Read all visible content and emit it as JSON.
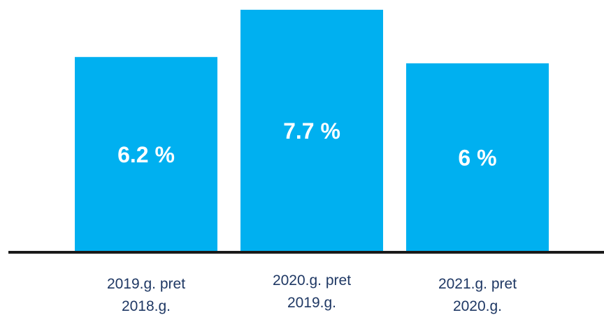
{
  "chart_data": {
    "type": "bar",
    "title": "",
    "xlabel": "",
    "ylabel": "",
    "categories": [
      [
        "2019.g. pret",
        "2018.g."
      ],
      [
        "2020.g. pret",
        "2019.g."
      ],
      [
        "2021.g. pret",
        "2020.g."
      ]
    ],
    "values": [
      6.2,
      7.7,
      6
    ],
    "data_labels": [
      "6.2 %",
      "7.7 %",
      "6 %"
    ],
    "ylim": [
      0,
      7.7
    ],
    "grid": false,
    "legend": "none",
    "colors": {
      "bar": "#00b0f0",
      "data_label": "#ffffff",
      "baseline": "#1a1a1a",
      "category_label": "#1f3864"
    }
  }
}
